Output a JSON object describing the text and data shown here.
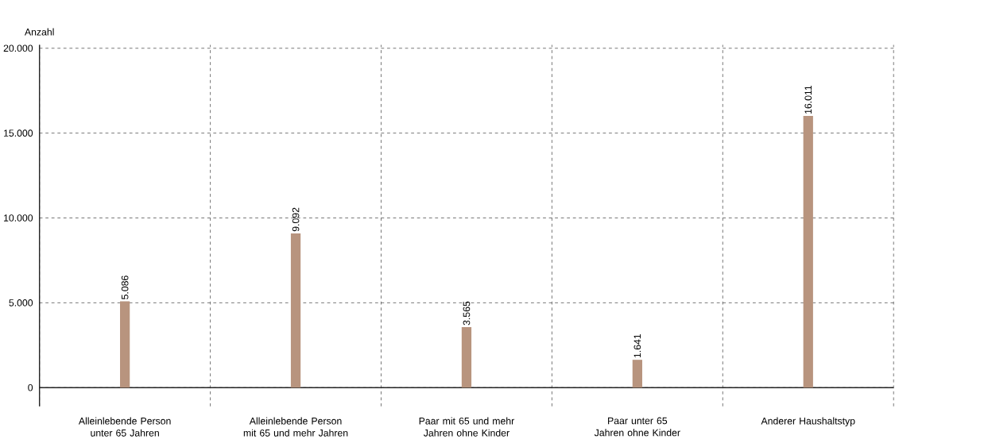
{
  "chart_data": {
    "type": "bar",
    "ylabel": "Anzahl",
    "categories": [
      "Alleinlebende Person unter 65 Jahren",
      "Alleinlebende Person mit 65 und mehr Jahren",
      "Paar mit 65 und mehr Jahren ohne Kinder",
      "Paar unter 65 Jahren ohne Kinder",
      "Anderer Haushaltstyp"
    ],
    "values": [
      5086,
      9092,
      3565,
      1641,
      16011
    ],
    "value_labels": [
      "5.086",
      "9.092",
      "3.565",
      "1.641",
      "16.011"
    ],
    "color": "#b8947e",
    "ylim": [
      -1100,
      20200
    ],
    "yticks": [
      {
        "value": 0,
        "label": "0"
      },
      {
        "value": 5000,
        "label": "5.000"
      },
      {
        "value": 10000,
        "label": "10.000"
      },
      {
        "value": 15000,
        "label": "15.000"
      },
      {
        "value": 20000,
        "label": "20.000"
      }
    ],
    "grid": true
  }
}
